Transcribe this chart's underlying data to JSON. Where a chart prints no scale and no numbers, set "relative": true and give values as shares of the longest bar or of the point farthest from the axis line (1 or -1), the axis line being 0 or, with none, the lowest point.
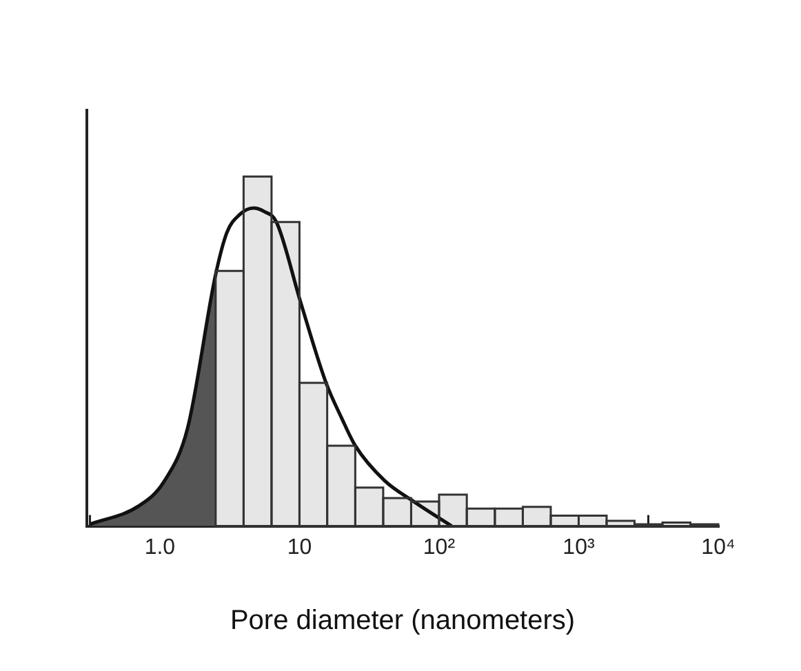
{
  "chart_data": {
    "type": "histogram",
    "xlabel": "Pore diameter (nanometers)",
    "relative": true,
    "log": "x",
    "bins": [
      2.51,
      3.98,
      6.31,
      10,
      15.8,
      25.1,
      39.8,
      63.1,
      100,
      158,
      251,
      398,
      631,
      1000,
      1585,
      2512,
      3981,
      6310,
      10000
    ],
    "values": [
      0.73,
      1,
      0.87,
      0.41,
      0.23,
      0.11,
      0.08,
      0.07,
      0.09,
      0.05,
      0.05,
      0.055,
      0.03,
      0.03,
      0.015,
      0.005,
      0.01,
      0.005
    ],
    "color": "#e6e6e6",
    "series": [
      {
        "type": "area",
        "color": "#555555",
        "x": [
          0.316,
          0.71,
          1.07,
          1.58,
          2.51
        ],
        "values": [
          0.005,
          0.058,
          0.127,
          0.28,
          0.72
        ]
      },
      {
        "type": "line",
        "color": "#111111",
        "x": [
          0.316,
          0.71,
          1.07,
          1.58,
          2.51,
          3.02,
          3.7,
          4.68,
          5.6,
          6.84,
          10.2,
          15.5,
          20,
          25.1,
          40.7,
          66,
          123
        ],
        "values": [
          0.005,
          0.058,
          0.127,
          0.28,
          0.72,
          0.84,
          0.89,
          0.91,
          0.9,
          0.87,
          0.64,
          0.41,
          0.31,
          0.23,
          0.13,
          0.07,
          0
        ]
      }
    ],
    "xlim": [
      0.3,
      10000
    ],
    "xticks": [
      {
        "value": 1,
        "label": "1.0"
      },
      10,
      {
        "value": 100,
        "label": "10²"
      },
      {
        "value": 1000,
        "label": "10³"
      },
      {
        "value": 10000,
        "label": "10⁴"
      }
    ],
    "grid": false,
    "legend": false,
    "marker": "none",
    "line_style": "solid"
  }
}
